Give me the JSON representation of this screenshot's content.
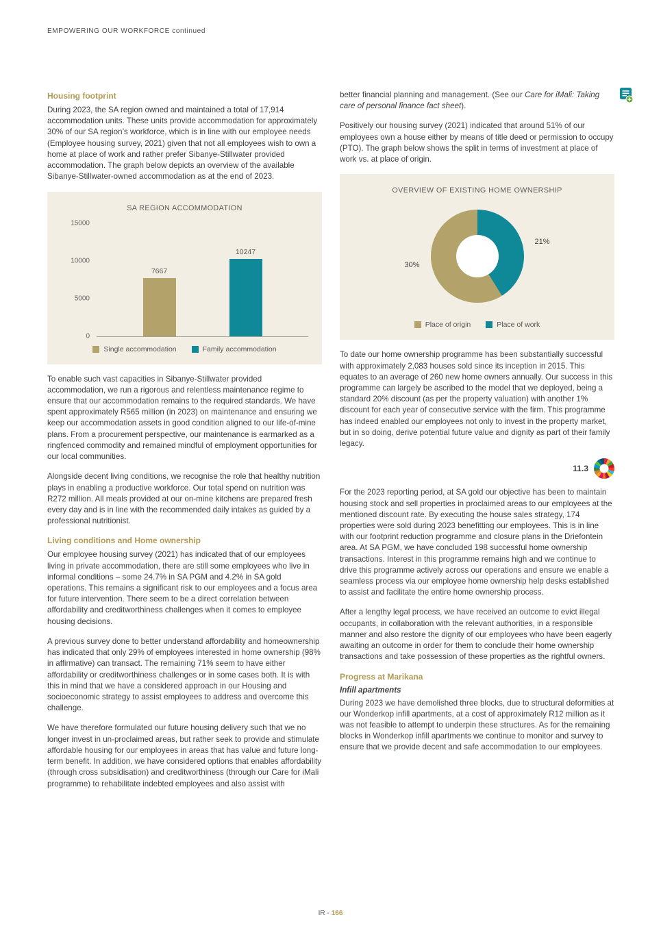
{
  "header": {
    "text": "EMPOWERING OUR WORKFORCE continued"
  },
  "footer": {
    "prefix": "IR -",
    "page": "166"
  },
  "colors": {
    "gold_heading": "#b09a55",
    "teal": "#0f8897",
    "tan": "#b4a26b",
    "chart_background": "#f2eee4"
  },
  "left_column": {
    "heading1": "Housing footprint",
    "para1": "During 2023, the SA region owned and maintained a total of 17,914 accommodation units. These units provide accommodation for approximately 30% of our SA region’s workforce, which is in line with our employee needs (Employee housing survey, 2021) given that not all employees wish to own a home at place of work and rather prefer Sibanye-Stillwater provided accommodation. The graph below depicts an overview of the available Sibanye-Stillwater-owned accommodation as at the end of 2023.",
    "para2": "To enable such vast capacities in Sibanye-Stillwater provided accommodation, we run a rigorous and relentless maintenance regime to ensure that our accommodation remains to the required standards. We have spent approximately R565 million (in 2023) on maintenance and ensuring we keep our accommodation assets in good condition aligned to our life-of-mine plans. From a procurement perspective, our maintenance is earmarked as a ringfenced commodity and remained mindful of employment opportunities for our local communities.",
    "para3": "Alongside decent living conditions, we recognise the role that healthy nutrition plays in enabling a productive workforce. Our total spend on nutrition was R272 million. All meals provided at our on-mine kitchens are prepared fresh every day and is in line with the recommended daily intakes as guided by a professional nutritionist.",
    "heading2": "Living conditions and Home ownership",
    "para4": "Our employee housing survey (2021) has indicated that of our employees living in private accommodation, there are still some employees who live in informal conditions – some 24.7% in SA PGM and 4.2% in SA gold operations. This remains a significant risk to our employees and a focus area for future intervention. There seem to be a direct correlation between affordability and creditworthiness challenges when it comes to employee housing decisions.",
    "para5": "A previous survey done to better understand affordability and homeownership has indicated that only 29% of employees interested in home ownership (98% in affirmative) can transact. The remaining 71% seem to have either affordability or creditworthiness challenges or in some cases both. It is with this in mind that we have a considered approach in our Housing and socioeconomic strategy to assist employees to address and overcome this challenge.",
    "para6": "We have therefore formulated our future housing delivery such that we no longer invest in un-proclaimed areas, but rather seek to provide and stimulate affordable housing for our employees in areas that has value and future long-term benefit. In addition, we have considered options that enables affordability (through cross subsidisation) and creditworthiness (through our Care for iMali programme) to rehabilitate indebted employees and also assist with"
  },
  "right_column": {
    "para1_pre": "better financial planning and management. (See our ",
    "para1_italic": "Care for iMali: Taking care of personal finance fact sheet",
    "para1_post": ").",
    "para2": "Positively our housing survey (2021) indicated that around 51% of our employees own a house either by means of title deed or permission to occupy (PTO). The graph below shows the split in terms of investment at place of work vs. at place of origin.",
    "para3": "To date our home ownership programme has been substantially successful with approximately 2,083 houses sold since its inception in 2015. This equates to an average of 260 new home owners annually. Our success in this programme can largely be ascribed to the model that we deployed, being a standard 20% discount (as per the property valuation) with another 1% discount for each year of consecutive service with the firm. This programme has indeed enabled our employees not only to invest in the property market, but in so doing, derive potential future value and dignity as part of their family legacy.",
    "sdg_label": "11.3",
    "para4": "For the 2023 reporting period, at SA gold our objective has been to maintain housing stock and sell properties in proclaimed areas to our employees at the mentioned discount rate. By executing the house sales strategy, 174 properties were sold during 2023 benefitting our employees. This is in line with our footprint reduction programme and closure plans in the Driefontein area. At SA PGM, we have concluded 198 successful home ownership transactions. Interest in this programme remains high and we continue to drive this programme actively across our operations and ensure we enable a seamless process via our employee home ownership help desks established to assist and facilitate the entire home ownership process.",
    "para5": "After a lengthy legal process, we have received an outcome to evict illegal occupants, in collaboration with the relevant authorities, in a responsible manner and also restore the dignity of our employees who have been eagerly awaiting an outcome in order for them to conclude their home ownership transactions and take possession of these properties as the rightful owners.",
    "heading1": "Progress at Marikana",
    "subheading1": "Infill apartments",
    "para6": "During 2023 we have demolished three blocks, due to structural deformities at our Wonderkop infill apartments, at a cost of approximately R12 million as it was not feasible to attempt to underpin these structures. As for the remaining blocks in Wonderkop infill apartments we continue to monitor and survey to ensure that we provide decent and safe accommodation to our employees."
  },
  "chart_data": [
    {
      "type": "bar",
      "title": "SA REGION ACCOMMODATION",
      "categories": [
        "Single accommodation",
        "Family accommodation"
      ],
      "values": [
        7667,
        10247
      ],
      "value_labels": [
        "7667",
        "10247"
      ],
      "colors": [
        "#b4a26b",
        "#0f8897"
      ],
      "ylim": [
        0,
        15000
      ],
      "yticks": [
        0,
        5000,
        10000,
        15000
      ],
      "ytick_labels": [
        "0",
        "5000",
        "10000",
        "15000"
      ],
      "grid": false,
      "legend_position": "bottom"
    },
    {
      "type": "pie",
      "donut": true,
      "title": "OVERVIEW OF EXISTING HOME OWNERSHIP",
      "labels": [
        "Place of origin",
        "Place of work"
      ],
      "values": [
        30,
        21
      ],
      "value_labels": [
        "30%",
        "21%"
      ],
      "colors": [
        "#b4a26b",
        "#0f8897"
      ],
      "legend_position": "bottom"
    }
  ],
  "icons": {
    "fact_sheet": "fact-sheet-icon",
    "sdg_wheel": "sdg-wheel-icon",
    "sdg_wheel_colors": [
      "#E5243B",
      "#DDA63A",
      "#4C9F38",
      "#C5192D",
      "#FF3A21",
      "#26BDE2",
      "#FCC30B",
      "#A21942",
      "#FD6925",
      "#DD1367",
      "#FD9D24",
      "#BF8B2E",
      "#3F7E44",
      "#0A97D9",
      "#56C02B",
      "#00689D",
      "#19486A"
    ]
  }
}
